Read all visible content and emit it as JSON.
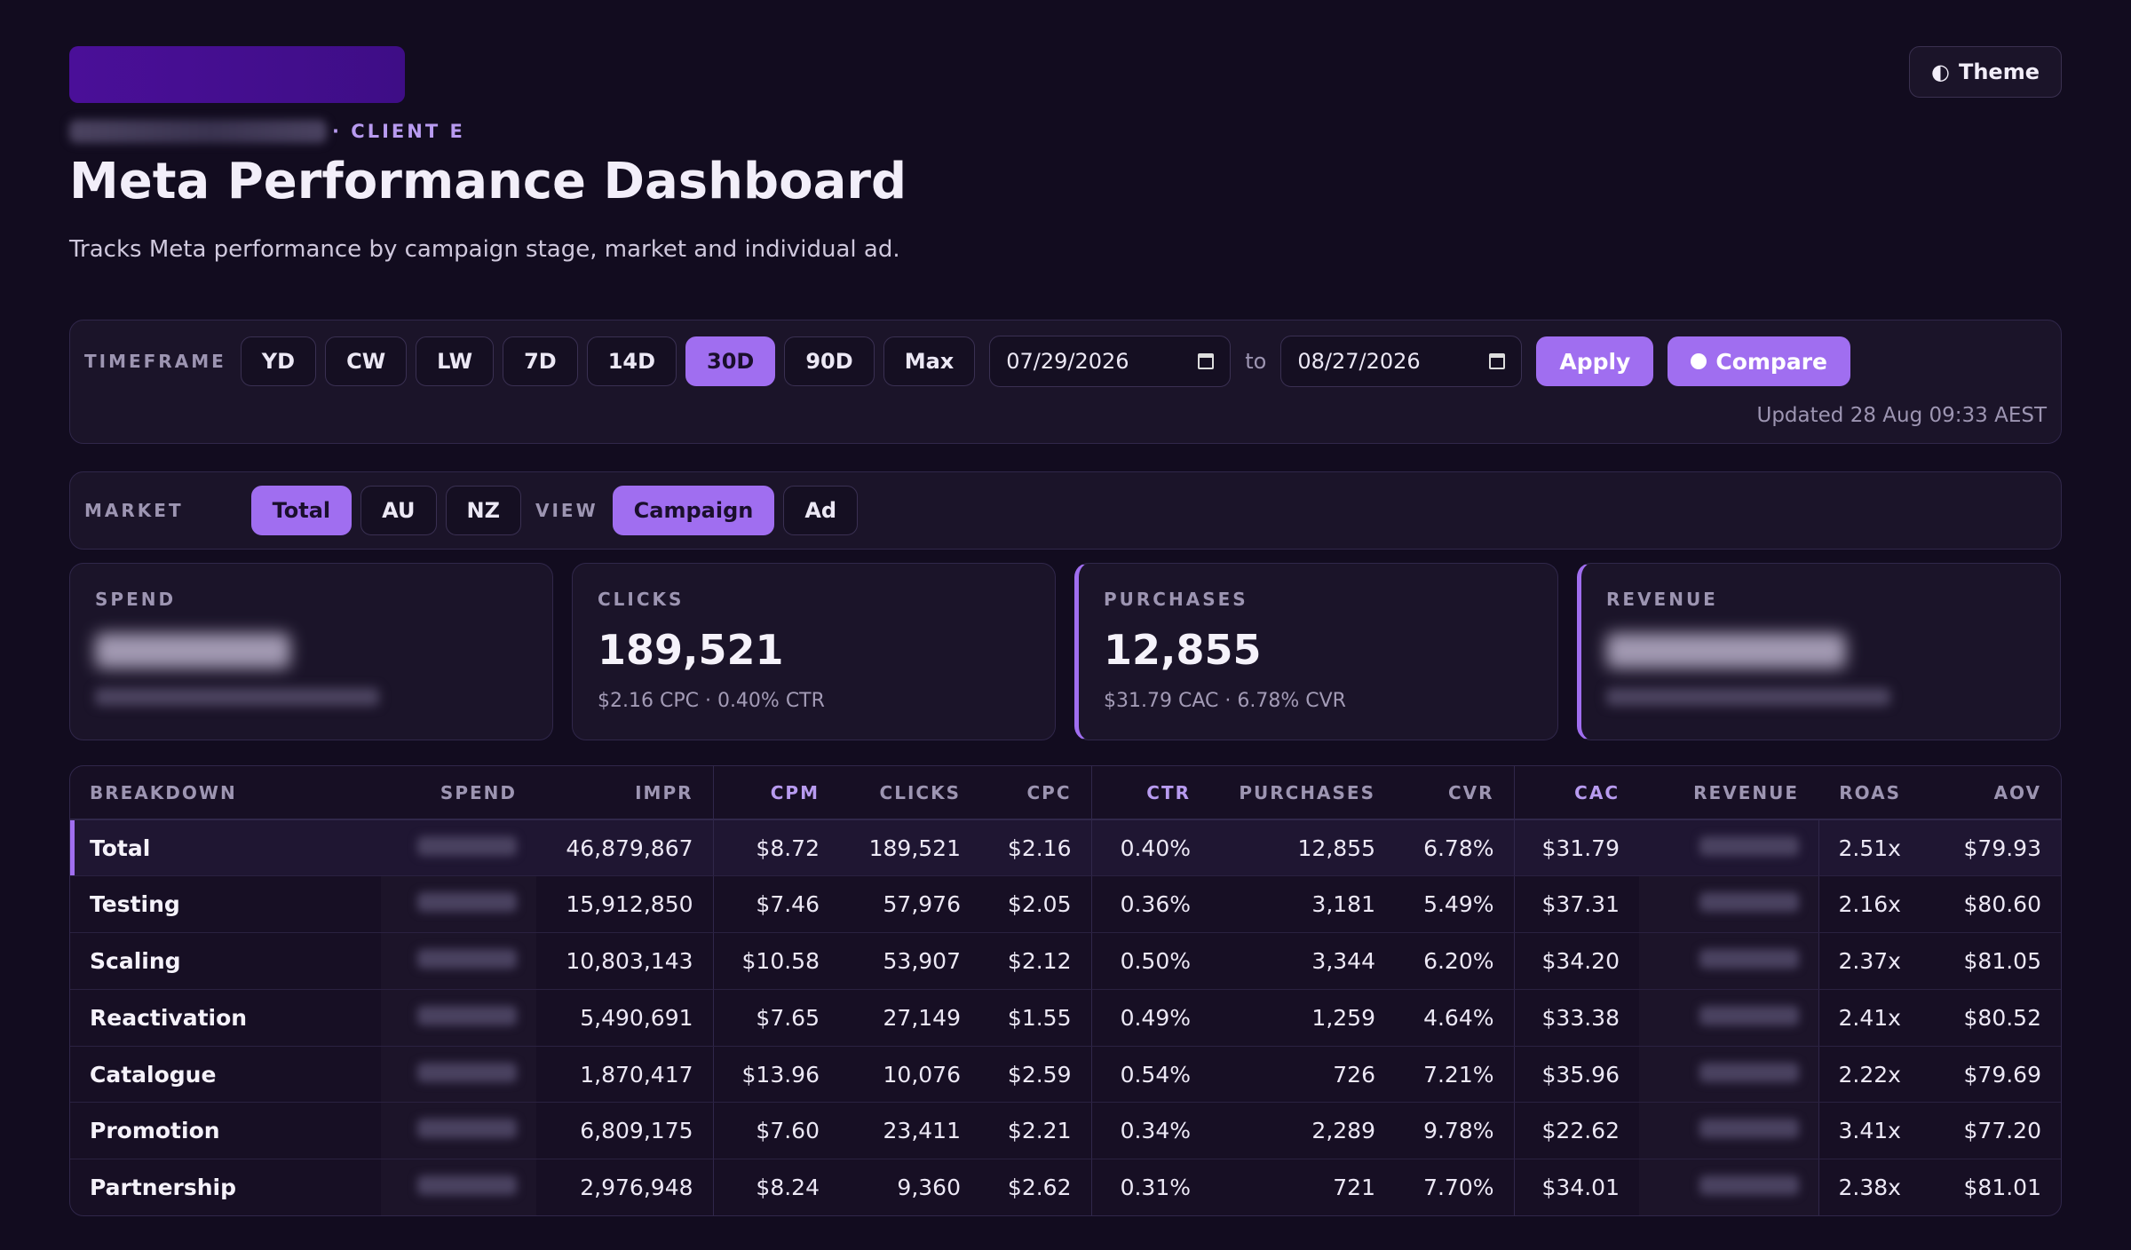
{
  "header": {
    "client_label": "· CLIENT E",
    "title": "Meta Performance Dashboard",
    "subtitle": "Tracks Meta performance by campaign stage, market and individual ad.",
    "theme_label": "Theme",
    "theme_icon": "◐"
  },
  "timeframe": {
    "label": "TIMEFRAME",
    "options": [
      "YD",
      "CW",
      "LW",
      "7D",
      "14D",
      "30D",
      "90D",
      "Max"
    ],
    "selected": "30D",
    "start_date": "07/29/2026",
    "to_label": "to",
    "end_date": "08/27/2026",
    "apply_label": "Apply",
    "compare_label": "Compare",
    "updated": "Updated 28 Aug 09:33 AEST"
  },
  "filters": {
    "market_label": "MARKET",
    "markets": [
      "Total",
      "AU",
      "NZ"
    ],
    "selected_market": "Total",
    "view_label": "VIEW",
    "views": [
      "Campaign",
      "Ad"
    ],
    "selected_view": "Campaign"
  },
  "kpis": {
    "spend": {
      "label": "SPEND"
    },
    "clicks": {
      "label": "CLICKS",
      "value": "189,521",
      "sub": "$2.16 CPC · 0.40% CTR"
    },
    "purchases": {
      "label": "PURCHASES",
      "value": "12,855",
      "sub": "$31.79 CAC · 6.78% CVR"
    },
    "revenue": {
      "label": "REVENUE"
    }
  },
  "table": {
    "headers": [
      "BREAKDOWN",
      "SPEND",
      "IMPR",
      "CPM",
      "CLICKS",
      "CPC",
      "CTR",
      "PURCHASES",
      "CVR",
      "CAC",
      "REVENUE",
      "ROAS",
      "AOV"
    ],
    "rows": [
      {
        "name": "Total",
        "impr": "46,879,867",
        "cpm": "$8.72",
        "clicks": "189,521",
        "cpc": "$2.16",
        "ctr": "0.40%",
        "purchases": "12,855",
        "cvr": "6.78%",
        "cac": "$31.79",
        "roas": "2.51x",
        "aov": "$79.93"
      },
      {
        "name": "Testing",
        "impr": "15,912,850",
        "cpm": "$7.46",
        "clicks": "57,976",
        "cpc": "$2.05",
        "ctr": "0.36%",
        "purchases": "3,181",
        "cvr": "5.49%",
        "cac": "$37.31",
        "roas": "2.16x",
        "aov": "$80.60"
      },
      {
        "name": "Scaling",
        "impr": "10,803,143",
        "cpm": "$10.58",
        "clicks": "53,907",
        "cpc": "$2.12",
        "ctr": "0.50%",
        "purchases": "3,344",
        "cvr": "6.20%",
        "cac": "$34.20",
        "roas": "2.37x",
        "aov": "$81.05"
      },
      {
        "name": "Reactivation",
        "impr": "5,490,691",
        "cpm": "$7.65",
        "clicks": "27,149",
        "cpc": "$1.55",
        "ctr": "0.49%",
        "purchases": "1,259",
        "cvr": "4.64%",
        "cac": "$33.38",
        "roas": "2.41x",
        "aov": "$80.52"
      },
      {
        "name": "Catalogue",
        "impr": "1,870,417",
        "cpm": "$13.96",
        "clicks": "10,076",
        "cpc": "$2.59",
        "ctr": "0.54%",
        "purchases": "726",
        "cvr": "7.21%",
        "cac": "$35.96",
        "roas": "2.22x",
        "aov": "$79.69"
      },
      {
        "name": "Promotion",
        "impr": "6,809,175",
        "cpm": "$7.60",
        "clicks": "23,411",
        "cpc": "$2.21",
        "ctr": "0.34%",
        "purchases": "2,289",
        "cvr": "9.78%",
        "cac": "$22.62",
        "roas": "3.41x",
        "aov": "$77.20"
      },
      {
        "name": "Partnership",
        "impr": "2,976,948",
        "cpm": "$8.24",
        "clicks": "9,360",
        "cpc": "$2.62",
        "ctr": "0.31%",
        "purchases": "721",
        "cvr": "7.70%",
        "cac": "$34.01",
        "roas": "2.38x",
        "aov": "$81.01"
      }
    ]
  },
  "colors": {
    "background": "#120c1f",
    "panel": "#1b1429",
    "accent": "#a06ef0",
    "logo": "#4a0f98"
  }
}
